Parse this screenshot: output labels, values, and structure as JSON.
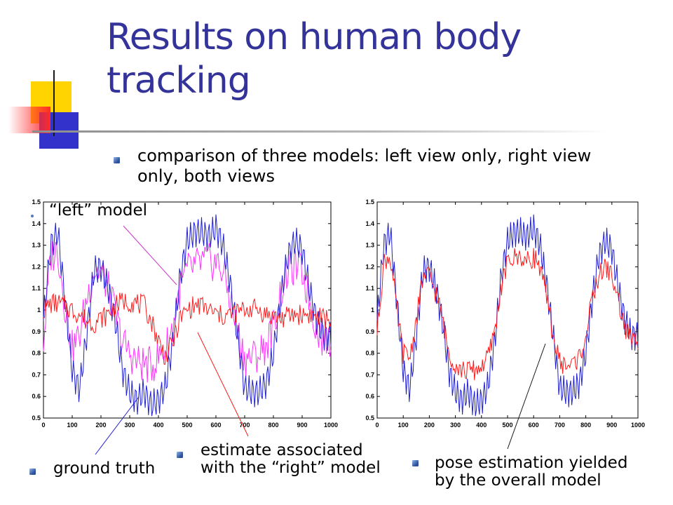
{
  "slide": {
    "title": "Results on human body tracking",
    "bullet": "comparison of three models: left view only, right view only, both views",
    "annotations": {
      "left_model": "“left” model",
      "ground_truth": "ground truth",
      "right_model_line1": "estimate associated",
      "right_model_line2": "with the “right” model",
      "overall_line1": "pose estimation yielded",
      "overall_line2": "by the overall model"
    }
  },
  "colors": {
    "title": "#333399",
    "ground_truth": "#2020d0",
    "left_model": "#ff33ff",
    "right_model": "#ff1a1a",
    "overall_model": "#ff1a1a",
    "decor_yellow": "#ffd400",
    "decor_blue": "#3333cc",
    "decor_red": "#ff3333"
  },
  "chart_data": [
    {
      "type": "line",
      "title": "",
      "xlabel": "",
      "ylabel": "",
      "xlim": [
        0,
        1000
      ],
      "ylim": [
        0.5,
        1.5
      ],
      "xticks": [
        0,
        100,
        200,
        300,
        400,
        500,
        600,
        700,
        800,
        900,
        1000
      ],
      "yticks": [
        0.5,
        0.6,
        0.7,
        0.8,
        0.9,
        1,
        1.1,
        1.2,
        1.3,
        1.4,
        1.5
      ],
      "grid": false,
      "series": [
        {
          "key": "ground_truth",
          "x": [
            0,
            25,
            50,
            75,
            100,
            125,
            150,
            175,
            200,
            225,
            250,
            275,
            300,
            325,
            350,
            375,
            400,
            425,
            450,
            475,
            500,
            525,
            550,
            575,
            600,
            625,
            650,
            675,
            700,
            725,
            750,
            775,
            800,
            825,
            850,
            875,
            900,
            925,
            950,
            975,
            1000
          ],
          "values": [
            0.95,
            1.3,
            1.36,
            1.05,
            0.72,
            0.63,
            0.88,
            1.18,
            1.2,
            1.1,
            0.95,
            0.72,
            0.62,
            0.58,
            0.62,
            0.56,
            0.58,
            0.65,
            0.85,
            1.15,
            1.32,
            1.36,
            1.36,
            1.34,
            1.38,
            1.3,
            1.12,
            0.88,
            0.64,
            0.62,
            0.62,
            0.66,
            0.8,
            1.05,
            1.25,
            1.32,
            1.28,
            1.1,
            0.95,
            0.88,
            0.88
          ]
        },
        {
          "key": "left_model",
          "x": [
            0,
            25,
            50,
            75,
            100,
            125,
            150,
            175,
            200,
            225,
            250,
            275,
            300,
            325,
            350,
            375,
            400,
            425,
            450,
            475,
            500,
            525,
            550,
            575,
            600,
            625,
            650,
            675,
            700,
            725,
            750,
            775,
            800,
            825,
            850,
            875,
            900,
            925,
            950,
            975,
            1000
          ],
          "values": [
            0.85,
            1.25,
            1.28,
            1.02,
            0.82,
            0.88,
            1.05,
            1.18,
            1.18,
            1.1,
            0.98,
            0.85,
            0.8,
            0.76,
            0.75,
            0.74,
            0.78,
            0.82,
            0.92,
            1.1,
            1.18,
            1.2,
            1.22,
            1.22,
            1.22,
            1.18,
            1.05,
            0.9,
            0.78,
            0.78,
            0.8,
            0.84,
            0.92,
            1.08,
            1.18,
            1.2,
            1.18,
            1.05,
            0.92,
            0.86,
            0.86
          ]
        },
        {
          "key": "right_model",
          "x": [
            0,
            25,
            50,
            75,
            100,
            125,
            150,
            175,
            200,
            225,
            250,
            275,
            300,
            325,
            350,
            375,
            400,
            425,
            450,
            475,
            500,
            525,
            550,
            575,
            600,
            625,
            650,
            675,
            700,
            725,
            750,
            775,
            800,
            825,
            850,
            875,
            900,
            925,
            950,
            975,
            1000
          ],
          "values": [
            1.0,
            1.03,
            1.03,
            1.02,
            1.0,
            0.98,
            0.95,
            0.94,
            0.96,
            0.98,
            1.02,
            1.04,
            1.04,
            1.03,
            1.02,
            0.95,
            0.86,
            0.78,
            0.85,
            0.96,
            1.0,
            1.02,
            1.02,
            1.0,
            0.98,
            0.97,
            0.98,
            0.99,
            1.0,
            1.01,
            1.0,
            0.98,
            0.97,
            0.96,
            0.97,
            0.98,
            0.98,
            0.98,
            0.97,
            0.96,
            0.96
          ]
        }
      ]
    },
    {
      "type": "line",
      "title": "",
      "xlabel": "",
      "ylabel": "",
      "xlim": [
        0,
        1000
      ],
      "ylim": [
        0.5,
        1.5
      ],
      "xticks": [
        0,
        100,
        200,
        300,
        400,
        500,
        600,
        700,
        800,
        900,
        1000
      ],
      "yticks": [
        0.5,
        0.6,
        0.7,
        0.8,
        0.9,
        1,
        1.1,
        1.2,
        1.3,
        1.4,
        1.5
      ],
      "grid": false,
      "series": [
        {
          "key": "ground_truth",
          "x": [
            0,
            25,
            50,
            75,
            100,
            125,
            150,
            175,
            200,
            225,
            250,
            275,
            300,
            325,
            350,
            375,
            400,
            425,
            450,
            475,
            500,
            525,
            550,
            575,
            600,
            625,
            650,
            675,
            700,
            725,
            750,
            775,
            800,
            825,
            850,
            875,
            900,
            925,
            950,
            975,
            1000
          ],
          "values": [
            0.95,
            1.3,
            1.36,
            1.05,
            0.72,
            0.63,
            0.88,
            1.18,
            1.2,
            1.1,
            0.95,
            0.72,
            0.62,
            0.58,
            0.62,
            0.56,
            0.58,
            0.65,
            0.85,
            1.15,
            1.32,
            1.36,
            1.36,
            1.34,
            1.38,
            1.3,
            1.12,
            0.88,
            0.64,
            0.62,
            0.62,
            0.66,
            0.8,
            1.05,
            1.25,
            1.32,
            1.28,
            1.1,
            0.95,
            0.88,
            0.88
          ]
        },
        {
          "key": "overall_model",
          "x": [
            0,
            25,
            50,
            75,
            100,
            125,
            150,
            175,
            200,
            225,
            250,
            275,
            300,
            325,
            350,
            375,
            400,
            425,
            450,
            475,
            500,
            525,
            550,
            575,
            600,
            625,
            650,
            675,
            700,
            725,
            750,
            775,
            800,
            825,
            850,
            875,
            900,
            925,
            950,
            975,
            1000
          ],
          "values": [
            0.9,
            1.22,
            1.25,
            1.0,
            0.8,
            0.78,
            0.95,
            1.15,
            1.16,
            1.08,
            0.96,
            0.8,
            0.75,
            0.72,
            0.72,
            0.72,
            0.74,
            0.78,
            0.9,
            1.1,
            1.22,
            1.24,
            1.25,
            1.22,
            1.25,
            1.2,
            1.05,
            0.88,
            0.76,
            0.74,
            0.75,
            0.78,
            0.88,
            1.05,
            1.16,
            1.2,
            1.16,
            1.04,
            0.92,
            0.86,
            0.86
          ]
        }
      ]
    }
  ]
}
